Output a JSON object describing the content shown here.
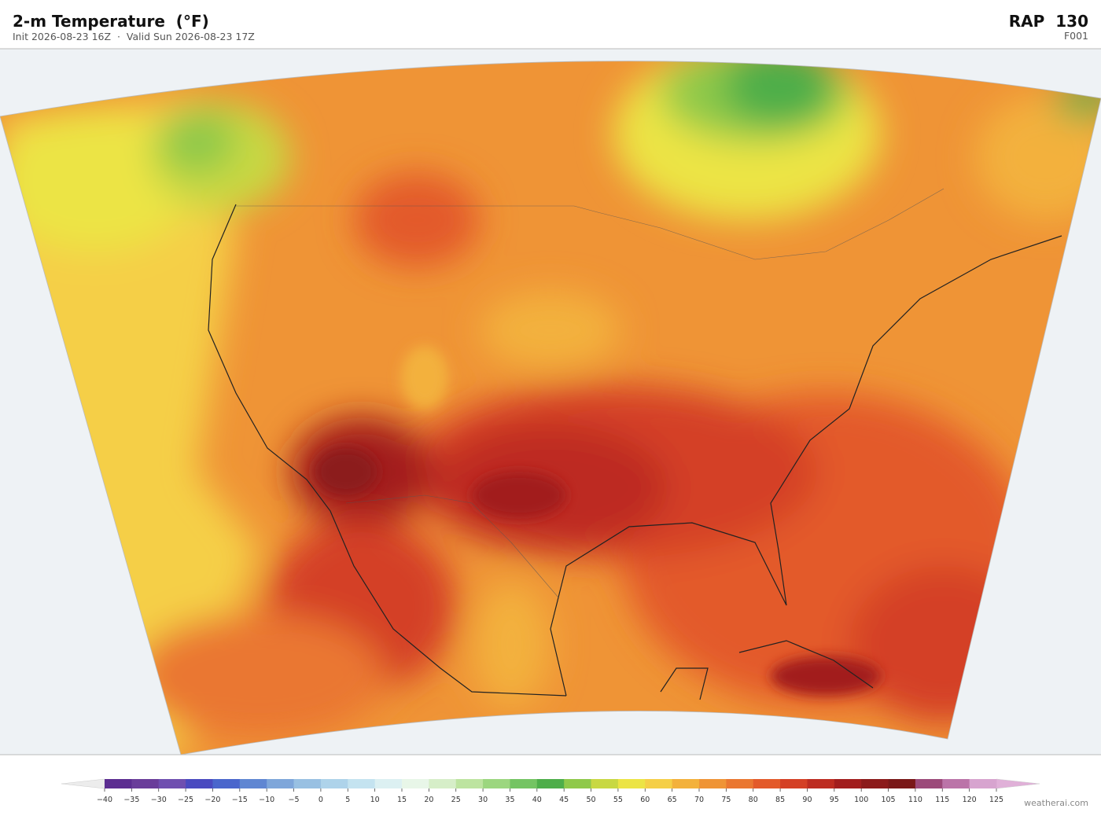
{
  "header": {
    "title": "2-m Temperature  (°F)",
    "subtitle": "Init 2026-08-23 16Z  ·  Valid Sun 2026-08-23 17Z",
    "model": "RAP  130",
    "forecast_hour": "F001"
  },
  "colorbar": {
    "ticks": [
      {
        "value": -40,
        "label": "−40"
      },
      {
        "value": -35,
        "label": "−35"
      },
      {
        "value": -30,
        "label": "−30"
      },
      {
        "value": -25,
        "label": "−25"
      },
      {
        "value": -20,
        "label": "−20"
      },
      {
        "value": -15,
        "label": "−15"
      },
      {
        "value": -10,
        "label": "−10"
      },
      {
        "value": -5,
        "label": "−5"
      },
      0,
      5,
      10,
      15,
      20,
      25,
      30,
      35,
      40,
      45,
      50,
      55,
      60,
      65,
      70,
      75,
      80,
      85,
      90,
      95,
      100,
      105,
      110,
      115,
      120,
      125
    ],
    "colors": [
      "#5c2d91",
      "#6a3d9a",
      "#6f4fb0",
      "#4a4ac0",
      "#4a66cc",
      "#5f86d2",
      "#7ea6da",
      "#98c0e2",
      "#aed3ea",
      "#c4e3f0",
      "#dcf0f2",
      "#e8f6e8",
      "#d6eec8",
      "#bde4a0",
      "#9cd67f",
      "#74c463",
      "#4eae4a",
      "#8fc94a",
      "#c8d843",
      "#ece445",
      "#f5cf47",
      "#f3b13c",
      "#ef9436",
      "#ea7731",
      "#e35a2a",
      "#d44025",
      "#bd2c21",
      "#a21e1e",
      "#8c1a1a",
      "#7a1818",
      "#9c4a7a",
      "#bb74a8",
      "#d7a4cf"
    ],
    "under_color": "#ececec",
    "over_color": "#e0b0d8"
  },
  "credit": "weatherai.com"
}
